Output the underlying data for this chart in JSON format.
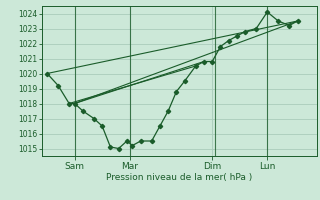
{
  "background_color": "#cce8d8",
  "grid_color": "#aaccbb",
  "line_color": "#1a5c2a",
  "title": "Pression niveau de la mer( hPa )",
  "ylim": [
    1014.5,
    1024.5
  ],
  "yticks": [
    1015,
    1016,
    1017,
    1018,
    1019,
    1020,
    1021,
    1022,
    1023,
    1024
  ],
  "xtick_labels": [
    "Sam",
    "Mar",
    "Dim",
    "Lun"
  ],
  "xtick_positions": [
    1,
    3,
    6,
    8
  ],
  "xlim": [
    -0.2,
    9.8
  ],
  "series": [
    [
      0,
      1020.0
    ],
    [
      0.4,
      1019.2
    ],
    [
      0.8,
      1018.0
    ],
    [
      1.0,
      1018.0
    ],
    [
      1.3,
      1017.5
    ],
    [
      1.7,
      1017.0
    ],
    [
      2.0,
      1016.5
    ],
    [
      2.3,
      1015.1
    ],
    [
      2.6,
      1015.0
    ],
    [
      2.9,
      1015.5
    ],
    [
      3.1,
      1015.2
    ],
    [
      3.4,
      1015.5
    ],
    [
      3.8,
      1015.5
    ],
    [
      4.1,
      1016.5
    ],
    [
      4.4,
      1017.5
    ],
    [
      4.7,
      1018.8
    ],
    [
      5.0,
      1019.5
    ],
    [
      5.4,
      1020.5
    ],
    [
      5.7,
      1020.8
    ],
    [
      6.0,
      1020.8
    ],
    [
      6.3,
      1021.8
    ],
    [
      6.6,
      1022.2
    ],
    [
      6.9,
      1022.5
    ],
    [
      7.2,
      1022.8
    ],
    [
      7.6,
      1023.0
    ],
    [
      8.0,
      1024.1
    ],
    [
      8.4,
      1023.5
    ],
    [
      8.8,
      1023.2
    ],
    [
      9.1,
      1023.5
    ]
  ],
  "straight_lines": [
    [
      [
        0,
        1020.0
      ],
      [
        9.1,
        1023.5
      ]
    ],
    [
      [
        1.0,
        1018.0
      ],
      [
        9.1,
        1023.5
      ]
    ],
    [
      [
        1.0,
        1018.0
      ],
      [
        5.7,
        1020.8
      ]
    ],
    [
      [
        0.8,
        1018.0
      ],
      [
        5.4,
        1020.5
      ]
    ]
  ],
  "vlines": [
    1.0,
    3.0,
    6.1,
    8.0
  ]
}
